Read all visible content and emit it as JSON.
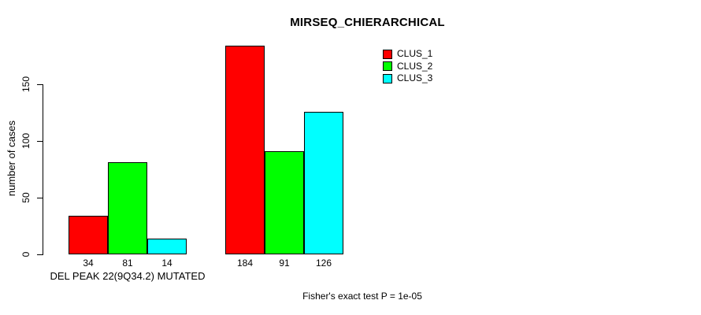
{
  "chart_data": {
    "type": "bar",
    "title": "MIRSEQ_CHIERARCHICAL",
    "ylabel": "number of cases",
    "annotation": "Fisher's exact test P = 1e-05",
    "yticks": [
      0,
      50,
      100,
      150
    ],
    "ylim": [
      0,
      190
    ],
    "grid": false,
    "legend_position": "top-right",
    "series": [
      {
        "name": "CLUS_1",
        "color": "#ff0000"
      },
      {
        "name": "CLUS_2",
        "color": "#00ff00"
      },
      {
        "name": "CLUS_3",
        "color": "#00ffff"
      }
    ],
    "groups": [
      {
        "label": "DEL PEAK 22(9Q34.2) MUTATED",
        "values": [
          34,
          81,
          14
        ]
      },
      {
        "label": "",
        "values": [
          184,
          91,
          126
        ]
      }
    ]
  }
}
